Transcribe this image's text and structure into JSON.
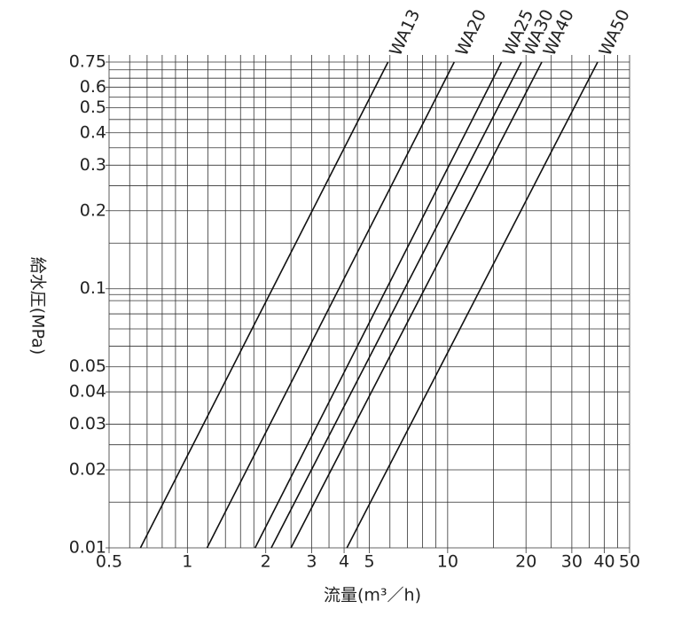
{
  "chart_data": {
    "type": "line",
    "xscale": "log",
    "yscale": "log",
    "grid": true,
    "xlabel": "流量(m³／h)",
    "ylabel": "給水圧(MPa)",
    "xlim": [
      0.5,
      50
    ],
    "ylim": [
      0.01,
      0.75
    ],
    "xticks": [
      0.5,
      1,
      2,
      3,
      4,
      5,
      10,
      20,
      30,
      40,
      50
    ],
    "yticks": [
      0.01,
      0.02,
      0.03,
      0.04,
      0.05,
      0.1,
      0.2,
      0.3,
      0.4,
      0.5,
      0.6,
      0.75
    ],
    "xgrid": [
      0.6,
      0.7,
      0.8,
      0.9,
      1.2,
      1.4,
      1.6,
      1.8,
      2.5,
      3.5,
      4.5,
      6,
      7,
      8,
      9,
      15,
      25,
      35,
      45
    ],
    "ygrid": [
      0.015,
      0.025,
      0.06,
      0.07,
      0.08,
      0.09,
      0.095,
      0.15,
      0.25,
      0.35,
      0.45,
      0.55,
      0.65,
      0.7
    ],
    "series": [
      {
        "name": "WA13",
        "color": "#111111",
        "x": [
          0.66,
          5.9
        ],
        "values": [
          0.01,
          0.75
        ]
      },
      {
        "name": "WA20",
        "color": "#111111",
        "x": [
          1.19,
          10.6
        ],
        "values": [
          0.01,
          0.75
        ]
      },
      {
        "name": "WA25",
        "color": "#111111",
        "x": [
          1.82,
          16.1
        ],
        "values": [
          0.01,
          0.75
        ]
      },
      {
        "name": "WA30",
        "color": "#111111",
        "x": [
          2.1,
          19.2
        ],
        "values": [
          0.01,
          0.75
        ]
      },
      {
        "name": "WA40",
        "color": "#111111",
        "x": [
          2.5,
          23
        ],
        "values": [
          0.01,
          0.75
        ]
      },
      {
        "name": "WA50",
        "color": "#111111",
        "x": [
          4.1,
          37.7
        ],
        "values": [
          0.01,
          0.75
        ]
      }
    ]
  }
}
